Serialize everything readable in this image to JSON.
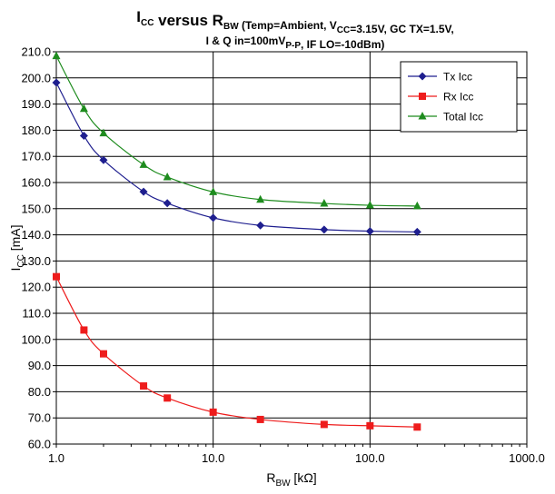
{
  "chart_data": {
    "type": "line",
    "title": {
      "line1": [
        {
          "text": "I"
        },
        {
          "text": "CC",
          "sub": true
        },
        {
          "text": " versus R"
        },
        {
          "text": "BW",
          "sub": true
        },
        {
          "text": " (Temp=Ambient, V",
          "small": true
        },
        {
          "text": "CC",
          "sub": true,
          "small": true
        },
        {
          "text": "=3.15V, GC TX=1.5V,",
          "small": true
        }
      ],
      "line2": [
        {
          "text": "I & Q in=100mV",
          "small": true
        },
        {
          "text": "P-P",
          "sub": true,
          "small": true
        },
        {
          "text": ", IF LO=-10dBm)",
          "small": true
        }
      ]
    },
    "xlabel": {
      "main": "R",
      "sub": "BW",
      "rest": " [kΩ]"
    },
    "ylabel": {
      "main": "I",
      "sub": "CC",
      "rest": " [mA]"
    },
    "xscale": "log",
    "xlim": [
      1,
      1000
    ],
    "ylim": [
      60,
      210
    ],
    "x_ticks": [
      1,
      10,
      100,
      1000
    ],
    "x_tick_labels": [
      "1.0",
      "10.0",
      "100.0",
      "1000.0"
    ],
    "y_ticks": [
      60,
      70,
      80,
      90,
      100,
      110,
      120,
      130,
      140,
      150,
      160,
      170,
      180,
      190,
      200,
      210
    ],
    "y_tick_labels": [
      "60.0",
      "70.0",
      "80.0",
      "90.0",
      "100.0",
      "110.0",
      "120.0",
      "130.0",
      "140.0",
      "150.0",
      "160.0",
      "170.0",
      "180.0",
      "190.0",
      "200.0",
      "210.0"
    ],
    "grid": true,
    "legend_position": "top-right",
    "series": [
      {
        "name": "Tx Icc",
        "color": "#1f1f8f",
        "marker": "diamond",
        "x": [
          1,
          1.5,
          2,
          3.6,
          5.1,
          10,
          20,
          51,
          100,
          200
        ],
        "y": [
          198.2,
          177.9,
          168.6,
          156.5,
          152.1,
          146.5,
          143.6,
          142.0,
          141.4,
          141.1
        ]
      },
      {
        "name": "Rx Icc",
        "color": "#ee1c1c",
        "marker": "square",
        "x": [
          1,
          1.5,
          2,
          3.6,
          5.1,
          10,
          20,
          51,
          100,
          200
        ],
        "y": [
          124.0,
          103.6,
          94.5,
          82.2,
          77.6,
          72.2,
          69.4,
          67.5,
          67.0,
          66.5
        ]
      },
      {
        "name": "Total Icc",
        "color": "#1e8c1e",
        "marker": "triangle",
        "x": [
          1,
          1.5,
          2,
          3.6,
          5.1,
          10,
          20,
          51,
          100,
          200
        ],
        "y": [
          208.4,
          188.2,
          178.9,
          166.8,
          162.1,
          156.4,
          153.5,
          152.0,
          151.3,
          151.0
        ]
      }
    ]
  }
}
